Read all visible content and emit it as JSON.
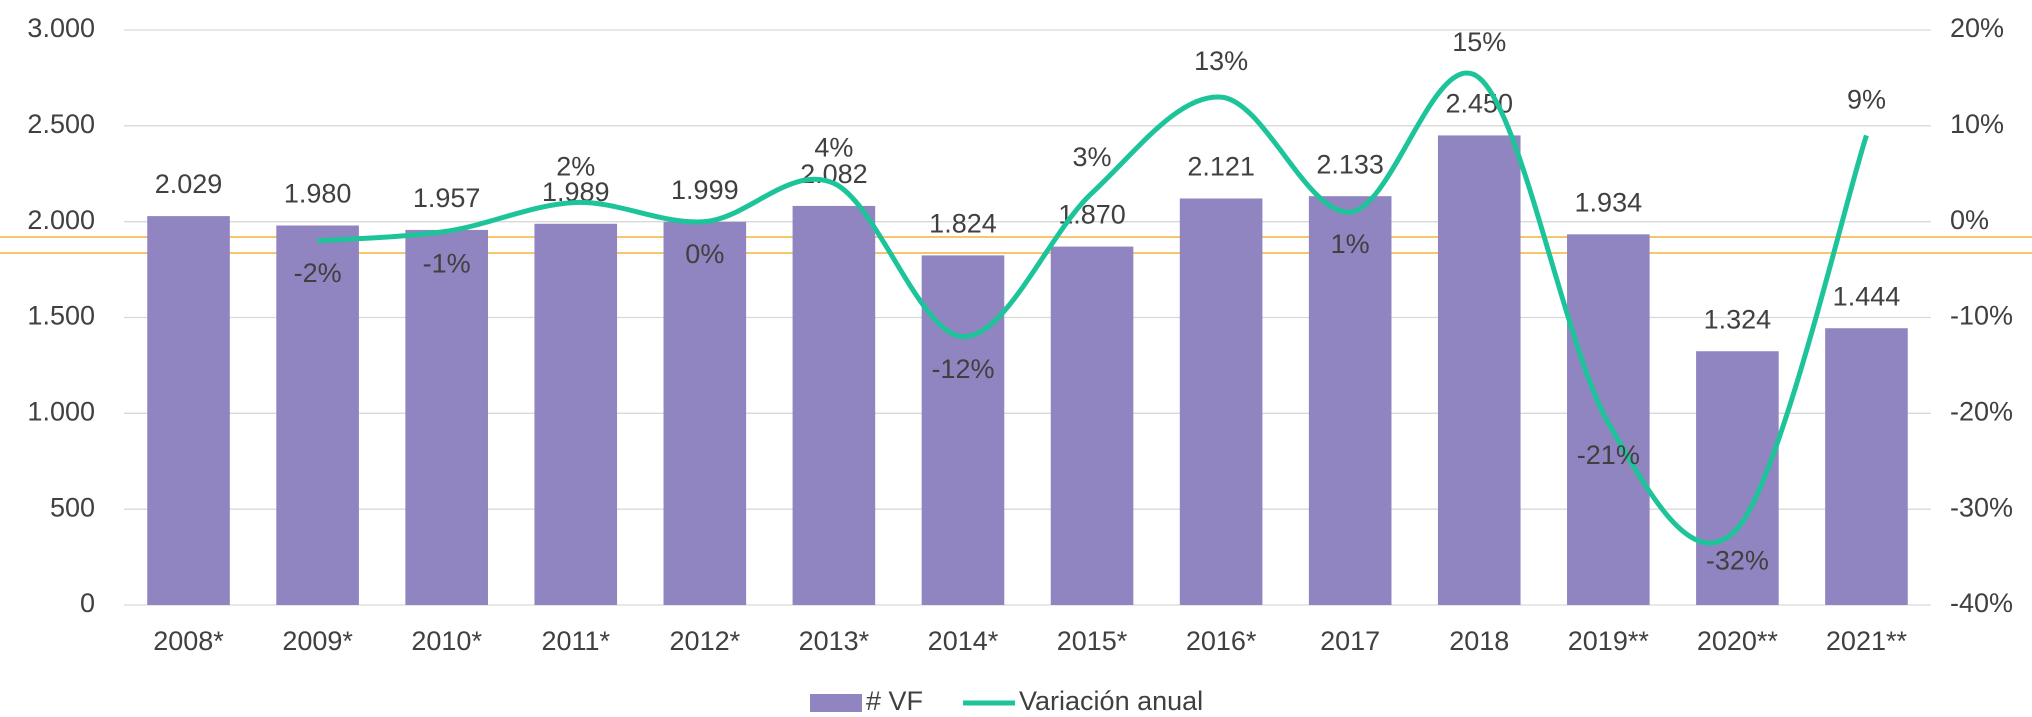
{
  "chart_data": {
    "type": "bar-line",
    "categories": [
      "2008*",
      "2009*",
      "2010*",
      "2011*",
      "2012*",
      "2013*",
      "2014*",
      "2015*",
      "2016*",
      "2017",
      "2018",
      "2019**",
      "2020**",
      "2021**"
    ],
    "series": [
      {
        "name": "# VF",
        "color": "#9085c0",
        "type": "bar",
        "values": [
          2029,
          1980,
          1957,
          1989,
          1999,
          2082,
          1824,
          1870,
          2121,
          2133,
          2450,
          1934,
          1324,
          1444
        ],
        "value_labels": [
          "2.029",
          "1.980",
          "1.957",
          "1.989",
          "1.999",
          "2.082",
          "1.824",
          "1.870",
          "2.121",
          "2.133",
          "2.450",
          "1.934",
          "1.324",
          "1.444"
        ]
      },
      {
        "name": "Variación anual",
        "color": "#1dc49a",
        "type": "line",
        "axis": "y2",
        "values": [
          null,
          -2,
          -1,
          2,
          0,
          4,
          -12,
          3,
          13,
          1,
          15,
          -21,
          -32,
          9
        ],
        "value_labels": [
          null,
          "-2%",
          "-1%",
          "2%",
          "0%",
          "4%",
          "-12%",
          "3%",
          "13%",
          "1%",
          "15%",
          "-21%",
          "-32%",
          "9%"
        ]
      }
    ],
    "ylim": [
      0,
      3000
    ],
    "yticks": [
      0,
      500,
      {
        "value": 1000,
        "label": "1.000"
      },
      {
        "value": 1500,
        "label": "1.500"
      },
      {
        "value": 2000,
        "label": "2.000"
      },
      {
        "value": 2500,
        "label": "2.500"
      },
      {
        "value": 3000,
        "label": "3.000"
      }
    ],
    "y2lim": [
      -40,
      20
    ],
    "y2ticks": [
      {
        "value": -40,
        "label": "-40%"
      },
      {
        "value": -30,
        "label": "-30%"
      },
      {
        "value": -20,
        "label": "-20%"
      },
      {
        "value": -10,
        "label": "-10%"
      },
      {
        "value": 0,
        "label": "0%"
      },
      {
        "value": 10,
        "label": "10%"
      },
      {
        "value": 20,
        "label": "20%"
      }
    ],
    "grid": true,
    "legend": "bottom"
  }
}
